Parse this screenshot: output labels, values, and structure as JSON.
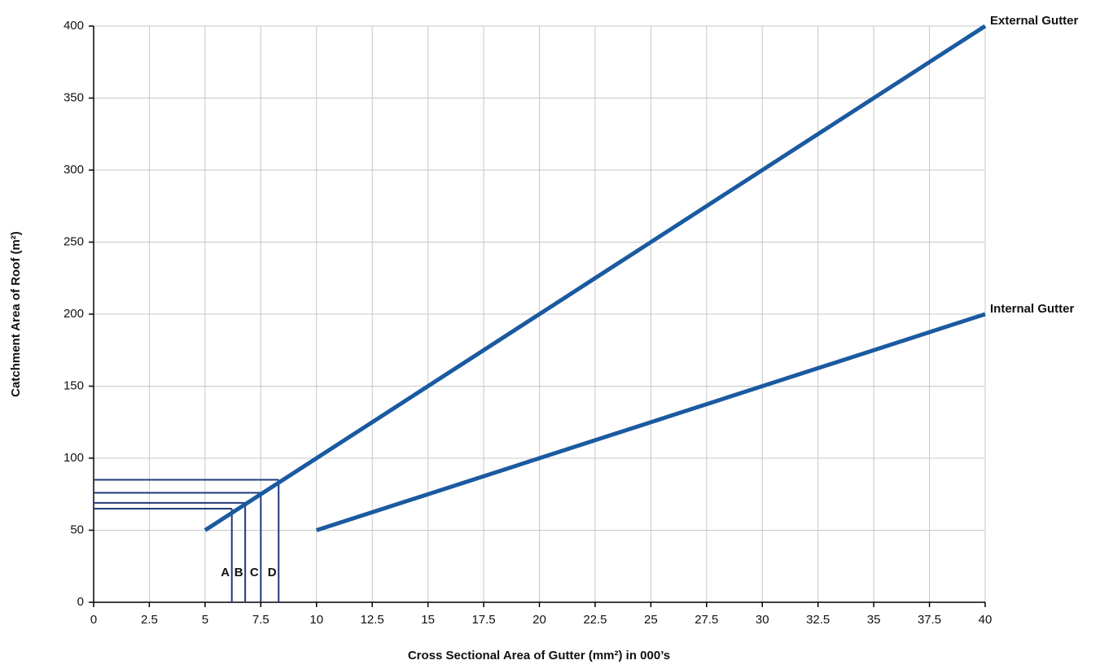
{
  "chart_data": {
    "type": "line",
    "x_label": "Cross Sectional Area of Gutter (mm²) in 000’s",
    "y_label": "Catchment Area of Roof (m²)",
    "xlim": [
      0,
      40
    ],
    "xticks": [
      0,
      2.5,
      5,
      7.5,
      10,
      12.5,
      15,
      17.5,
      20,
      22.5,
      25,
      27.5,
      30,
      32.5,
      35,
      37.5,
      40
    ],
    "ylim": [
      0,
      400
    ],
    "yticks": [
      0,
      50,
      100,
      150,
      200,
      250,
      300,
      350,
      400
    ],
    "grid": true,
    "series": [
      {
        "name": "External Gutter",
        "color": "#1a5aa0",
        "x": [
          5,
          40
        ],
        "values": [
          50,
          400
        ]
      },
      {
        "name": "Internal Gutter",
        "color": "#1a5aa0",
        "x": [
          10,
          40
        ],
        "values": [
          50,
          200
        ]
      }
    ],
    "guides": [
      {
        "label": "A",
        "x": 6.2,
        "y": 65
      },
      {
        "label": "B",
        "x": 6.8,
        "y": 69
      },
      {
        "label": "C",
        "x": 7.5,
        "y": 76
      },
      {
        "label": "D",
        "x": 8.3,
        "y": 85
      }
    ],
    "guide_color": "#1f3a7a"
  }
}
